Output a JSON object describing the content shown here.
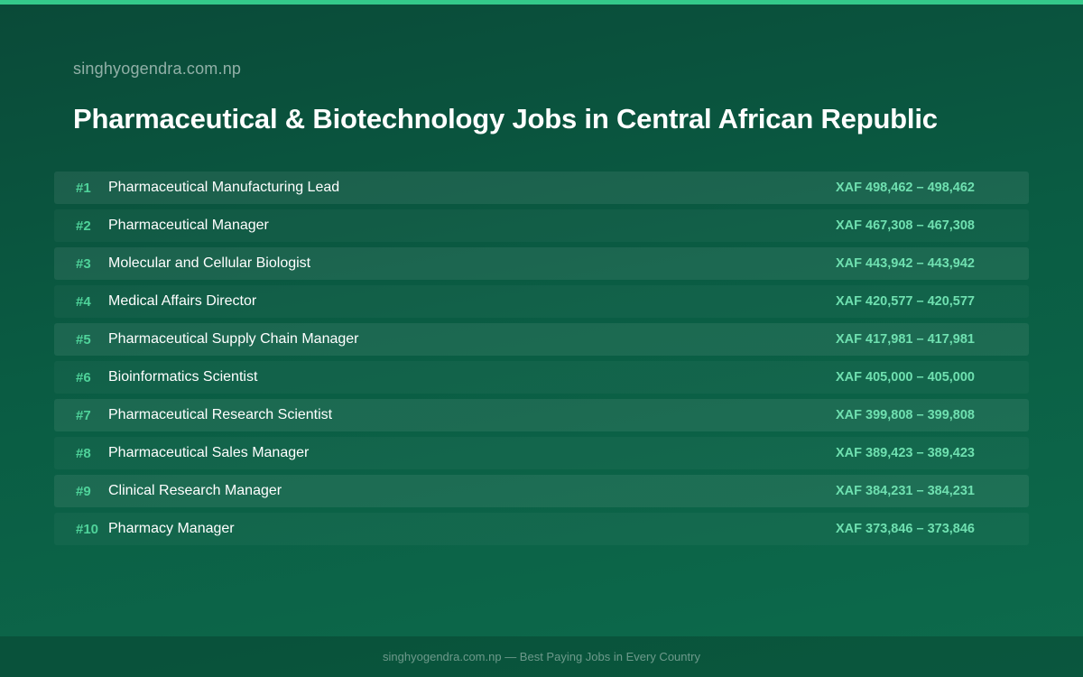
{
  "site": {
    "name": "singhyogendra.com.np"
  },
  "page": {
    "title": "Pharmaceutical & Biotechnology Jobs in Central African Republic"
  },
  "jobs": [
    {
      "rank": "#1",
      "title": "Pharmaceutical Manufacturing Lead",
      "salary": "XAF 498,462 – 498,462"
    },
    {
      "rank": "#2",
      "title": "Pharmaceutical Manager",
      "salary": "XAF 467,308 – 467,308"
    },
    {
      "rank": "#3",
      "title": "Molecular and Cellular Biologist",
      "salary": "XAF 443,942 – 443,942"
    },
    {
      "rank": "#4",
      "title": "Medical Affairs Director",
      "salary": "XAF 420,577 – 420,577"
    },
    {
      "rank": "#5",
      "title": "Pharmaceutical Supply Chain Manager",
      "salary": "XAF 417,981 – 417,981"
    },
    {
      "rank": "#6",
      "title": "Bioinformatics Scientist",
      "salary": "XAF 405,000 – 405,000"
    },
    {
      "rank": "#7",
      "title": "Pharmaceutical Research Scientist",
      "salary": "XAF 399,808 – 399,808"
    },
    {
      "rank": "#8",
      "title": "Pharmaceutical Sales Manager",
      "salary": "XAF 389,423 – 389,423"
    },
    {
      "rank": "#9",
      "title": "Clinical Research Manager",
      "salary": "XAF 384,231 – 384,231"
    },
    {
      "rank": "#10",
      "title": "Pharmacy Manager",
      "salary": "XAF 373,846 – 373,846"
    }
  ],
  "footer": {
    "text": "singhyogendra.com.np — Best Paying Jobs in Every Country"
  },
  "colors": {
    "accent": "#34c98a",
    "rank": "#4fd39a",
    "salary": "#6fe0b0",
    "background_top": "#0a4a38",
    "background_bottom": "#0d6b4c"
  }
}
